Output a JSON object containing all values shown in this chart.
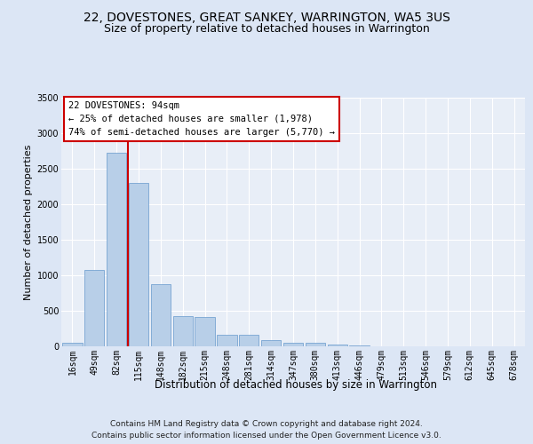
{
  "title": "22, DOVESTONES, GREAT SANKEY, WARRINGTON, WA5 3US",
  "subtitle": "Size of property relative to detached houses in Warrington",
  "xlabel": "Distribution of detached houses by size in Warrington",
  "ylabel": "Number of detached properties",
  "bar_categories": [
    "16sqm",
    "49sqm",
    "82sqm",
    "115sqm",
    "148sqm",
    "182sqm",
    "215sqm",
    "248sqm",
    "281sqm",
    "314sqm",
    "347sqm",
    "380sqm",
    "413sqm",
    "446sqm",
    "479sqm",
    "513sqm",
    "546sqm",
    "579sqm",
    "612sqm",
    "645sqm",
    "678sqm"
  ],
  "bar_values": [
    50,
    1080,
    2720,
    2300,
    870,
    420,
    415,
    160,
    160,
    85,
    55,
    55,
    25,
    8,
    5,
    3,
    2,
    1,
    0,
    0,
    0
  ],
  "bar_color": "#b8cfe8",
  "bar_edgecolor": "#6699cc",
  "vline_color": "#cc0000",
  "vline_index": 2.5,
  "annotation_text": "22 DOVESTONES: 94sqm\n← 25% of detached houses are smaller (1,978)\n74% of semi-detached houses are larger (5,770) →",
  "annotation_box_facecolor": "#ffffff",
  "annotation_box_edgecolor": "#cc0000",
  "ylim_max": 3500,
  "yticks": [
    0,
    500,
    1000,
    1500,
    2000,
    2500,
    3000,
    3500
  ],
  "fig_bg_color": "#dce6f5",
  "plot_bg_color": "#e8eef7",
  "title_fontsize": 10,
  "subtitle_fontsize": 9,
  "xlabel_fontsize": 8.5,
  "ylabel_fontsize": 8,
  "tick_fontsize": 7,
  "annotation_fontsize": 7.5,
  "footer_fontsize": 6.5,
  "footer_line1": "Contains HM Land Registry data © Crown copyright and database right 2024.",
  "footer_line2": "Contains public sector information licensed under the Open Government Licence v3.0."
}
